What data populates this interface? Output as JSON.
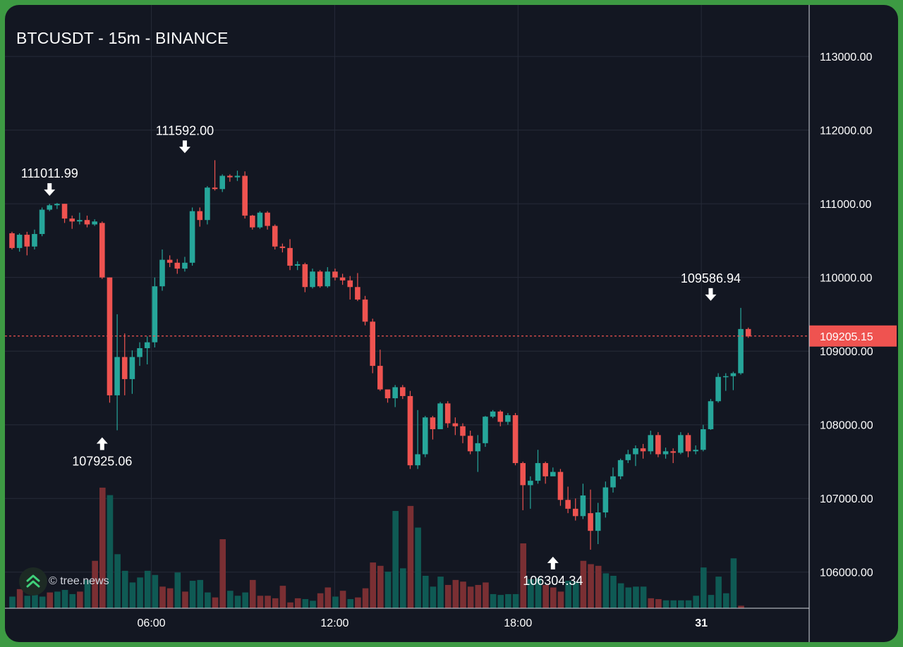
{
  "title": "BTCUSDT - 15m - BINANCE",
  "watermark": "© tree.news",
  "colors": {
    "background": "#131722",
    "frame": "#3d9a43",
    "up": "#26a69a",
    "down": "#ef5350",
    "up_volume": "#0f5a54",
    "down_volume": "#7a2f33",
    "grid": "#262b38",
    "axis_text": "#ffffff",
    "price_line": "#ef5350"
  },
  "chart_data": {
    "type": "candlestick",
    "symbol": "BTCUSDT",
    "interval": "15m",
    "exchange": "BINANCE",
    "x_ticks": [
      "06:00",
      "12:00",
      "18:00",
      "31"
    ],
    "y_ticks": [
      "106000.00",
      "107000.00",
      "108000.00",
      "109000.00",
      "110000.00",
      "111000.00",
      "112000.00",
      "113000.00"
    ],
    "ylim": [
      105050,
      113700
    ],
    "grid": true,
    "current_price": 109205.15,
    "current_price_label": "109205.15",
    "annotations": [
      {
        "label": "111011.99",
        "value": 111011.99,
        "candle": 5,
        "marker": "down-arrow",
        "position": "above"
      },
      {
        "label": "111592.00",
        "value": 111592.0,
        "candle": 23,
        "marker": "down-arrow",
        "position": "above"
      },
      {
        "label": "107925.06",
        "value": 107925.06,
        "candle": 12,
        "marker": "up-arrow",
        "position": "below"
      },
      {
        "label": "106304.34",
        "value": 106304.34,
        "candle": 72,
        "marker": "up-arrow",
        "position": "below"
      },
      {
        "label": "109586.94",
        "value": 109586.94,
        "candle": 93,
        "marker": "down-arrow",
        "position": "above"
      }
    ],
    "candles": [
      [
        110600,
        110400,
        110620,
        110380
      ],
      [
        110400,
        110580,
        110600,
        110350
      ],
      [
        110580,
        110420,
        110620,
        110300
      ],
      [
        110420,
        110590,
        110650,
        110380
      ],
      [
        110590,
        110920,
        110950,
        110560
      ],
      [
        110920,
        110980,
        111000,
        110900
      ],
      [
        110980,
        111000,
        111012,
        110930
      ],
      [
        111000,
        110800,
        111000,
        110740
      ],
      [
        110800,
        110760,
        110840,
        110660
      ],
      [
        110760,
        110780,
        110880,
        110720
      ],
      [
        110780,
        110720,
        110840,
        110680
      ],
      [
        110720,
        110760,
        110790,
        110700
      ],
      [
        110740,
        110000,
        110760,
        109980
      ],
      [
        110000,
        108400,
        110000,
        108300
      ],
      [
        108400,
        108920,
        109500,
        107925
      ],
      [
        108920,
        108620,
        109240,
        108400
      ],
      [
        108620,
        108920,
        109010,
        108420
      ],
      [
        108920,
        109040,
        109120,
        108800
      ],
      [
        109040,
        109120,
        109200,
        108820
      ],
      [
        109120,
        109880,
        110000,
        109050
      ],
      [
        109880,
        110240,
        110380,
        109820
      ],
      [
        110240,
        110200,
        110300,
        110140
      ],
      [
        110200,
        110120,
        110250,
        110050
      ],
      [
        110120,
        110200,
        110280,
        110080
      ],
      [
        110200,
        110900,
        110950,
        110160
      ],
      [
        110900,
        110780,
        110950,
        110690
      ],
      [
        110780,
        111220,
        111240,
        110720
      ],
      [
        111220,
        111200,
        111592,
        111180
      ],
      [
        111200,
        111380,
        111400,
        111160
      ],
      [
        111380,
        111360,
        111400,
        111300
      ],
      [
        111360,
        111380,
        111450,
        111310
      ],
      [
        111380,
        110840,
        111440,
        110800
      ],
      [
        110840,
        110680,
        110850,
        110650
      ],
      [
        110680,
        110880,
        110900,
        110660
      ],
      [
        110880,
        110700,
        110900,
        110650
      ],
      [
        110700,
        110420,
        110720,
        110380
      ],
      [
        110420,
        110400,
        110460,
        110340
      ],
      [
        110400,
        110160,
        110520,
        110100
      ],
      [
        110160,
        110180,
        110220,
        110100
      ],
      [
        110180,
        109870,
        110200,
        109800
      ],
      [
        109870,
        110080,
        110120,
        109850
      ],
      [
        110080,
        109880,
        110100,
        109860
      ],
      [
        109880,
        110080,
        110140,
        109860
      ],
      [
        110080,
        110000,
        110120,
        109960
      ],
      [
        110000,
        109960,
        110050,
        109900
      ],
      [
        109960,
        109870,
        110020,
        109700
      ],
      [
        109870,
        109700,
        110060,
        109680
      ],
      [
        109700,
        109400,
        109750,
        109350
      ],
      [
        109400,
        108800,
        109440,
        108700
      ],
      [
        108800,
        108480,
        109020,
        108460
      ],
      [
        108480,
        108360,
        108460,
        108300
      ],
      [
        108360,
        108510,
        108540,
        108240
      ],
      [
        108510,
        108390,
        108540,
        108350
      ],
      [
        108390,
        107450,
        108460,
        107400
      ],
      [
        107450,
        107600,
        108200,
        107400
      ],
      [
        107600,
        108100,
        108120,
        107560
      ],
      [
        108100,
        107940,
        108120,
        107800
      ],
      [
        107940,
        108290,
        108310,
        107940
      ],
      [
        108290,
        108020,
        108320,
        107960
      ],
      [
        108020,
        107980,
        108100,
        107860
      ],
      [
        107980,
        107850,
        108020,
        107750
      ],
      [
        107850,
        107640,
        107920,
        107600
      ],
      [
        107640,
        107750,
        107860,
        107360
      ],
      [
        107750,
        108110,
        108120,
        107700
      ],
      [
        108110,
        108180,
        108200,
        108090
      ],
      [
        108180,
        108040,
        108200,
        107980
      ],
      [
        108040,
        108130,
        108160,
        108000
      ],
      [
        108130,
        107480,
        108160,
        107450
      ],
      [
        107480,
        107180,
        107500,
        106840
      ],
      [
        107180,
        107240,
        107300,
        106860
      ],
      [
        107240,
        107480,
        107660,
        107200
      ],
      [
        107480,
        107300,
        107500,
        107200
      ],
      [
        107300,
        107360,
        107420,
        107320
      ],
      [
        107360,
        106980,
        107400,
        106900
      ],
      [
        106980,
        106860,
        107160,
        106800
      ],
      [
        106860,
        106760,
        107000,
        106700
      ],
      [
        106760,
        107040,
        107200,
        106720
      ],
      [
        106800,
        106560,
        107120,
        106304
      ],
      [
        106560,
        106810,
        106940,
        106380
      ],
      [
        106810,
        107150,
        107230,
        106740
      ],
      [
        107150,
        107300,
        107420,
        107080
      ],
      [
        107300,
        107520,
        107540,
        107260
      ],
      [
        107520,
        107600,
        107660,
        107480
      ],
      [
        107600,
        107680,
        107720,
        107440
      ],
      [
        107680,
        107640,
        107740,
        107540
      ],
      [
        107640,
        107860,
        107920,
        107600
      ],
      [
        107860,
        107600,
        107900,
        107560
      ],
      [
        107600,
        107640,
        107690,
        107540
      ],
      [
        107640,
        107620,
        107680,
        107480
      ],
      [
        107620,
        107860,
        107900,
        107600
      ],
      [
        107860,
        107640,
        107890,
        107560
      ],
      [
        107640,
        107660,
        107720,
        107600
      ],
      [
        107660,
        107940,
        108000,
        107640
      ],
      [
        107940,
        108320,
        108350,
        107930
      ],
      [
        108320,
        108650,
        108700,
        108300
      ],
      [
        108650,
        108660,
        108700,
        108460
      ],
      [
        108660,
        108700,
        108720,
        108470
      ],
      [
        108700,
        109300,
        109586.94,
        108680
      ],
      [
        109300,
        109200,
        109320,
        109180
      ]
    ],
    "volume": [
      [
        140,
        1
      ],
      [
        230,
        0
      ],
      [
        150,
        1
      ],
      [
        160,
        1
      ],
      [
        140,
        1
      ],
      [
        190,
        0
      ],
      [
        200,
        1
      ],
      [
        220,
        1
      ],
      [
        170,
        1
      ],
      [
        200,
        0
      ],
      [
        340,
        1
      ],
      [
        570,
        0
      ],
      [
        1450,
        0
      ],
      [
        1360,
        1
      ],
      [
        650,
        1
      ],
      [
        450,
        1
      ],
      [
        310,
        1
      ],
      [
        370,
        1
      ],
      [
        450,
        1
      ],
      [
        400,
        1
      ],
      [
        260,
        0
      ],
      [
        240,
        0
      ],
      [
        430,
        1
      ],
      [
        200,
        0
      ],
      [
        330,
        1
      ],
      [
        340,
        1
      ],
      [
        190,
        1
      ],
      [
        130,
        0
      ],
      [
        830,
        0
      ],
      [
        210,
        1
      ],
      [
        150,
        1
      ],
      [
        190,
        1
      ],
      [
        340,
        0
      ],
      [
        150,
        0
      ],
      [
        150,
        0
      ],
      [
        120,
        0
      ],
      [
        270,
        0
      ],
      [
        70,
        0
      ],
      [
        120,
        0
      ],
      [
        110,
        1
      ],
      [
        90,
        1
      ],
      [
        180,
        0
      ],
      [
        250,
        0
      ],
      [
        140,
        1
      ],
      [
        210,
        0
      ],
      [
        110,
        1
      ],
      [
        130,
        0
      ],
      [
        240,
        0
      ],
      [
        550,
        0
      ],
      [
        510,
        0
      ],
      [
        440,
        1
      ],
      [
        1170,
        1
      ],
      [
        480,
        1
      ],
      [
        1230,
        0
      ],
      [
        970,
        1
      ],
      [
        390,
        1
      ],
      [
        260,
        1
      ],
      [
        380,
        1
      ],
      [
        280,
        0
      ],
      [
        340,
        0
      ],
      [
        320,
        0
      ],
      [
        260,
        0
      ],
      [
        280,
        0
      ],
      [
        310,
        0
      ],
      [
        170,
        1
      ],
      [
        160,
        1
      ],
      [
        170,
        1
      ],
      [
        170,
        1
      ],
      [
        780,
        0
      ],
      [
        350,
        1
      ],
      [
        360,
        1
      ],
      [
        280,
        0
      ],
      [
        250,
        0
      ],
      [
        200,
        0
      ],
      [
        330,
        1
      ],
      [
        320,
        1
      ],
      [
        570,
        0
      ],
      [
        530,
        0
      ],
      [
        510,
        0
      ],
      [
        420,
        1
      ],
      [
        390,
        1
      ],
      [
        300,
        1
      ],
      [
        250,
        1
      ],
      [
        260,
        1
      ],
      [
        260,
        1
      ],
      [
        120,
        0
      ],
      [
        110,
        0
      ],
      [
        95,
        1
      ],
      [
        95,
        1
      ],
      [
        95,
        1
      ],
      [
        95,
        1
      ],
      [
        150,
        1
      ],
      [
        490,
        1
      ],
      [
        160,
        1
      ],
      [
        380,
        1
      ],
      [
        180,
        1
      ],
      [
        600,
        1
      ],
      [
        30,
        0
      ]
    ]
  }
}
